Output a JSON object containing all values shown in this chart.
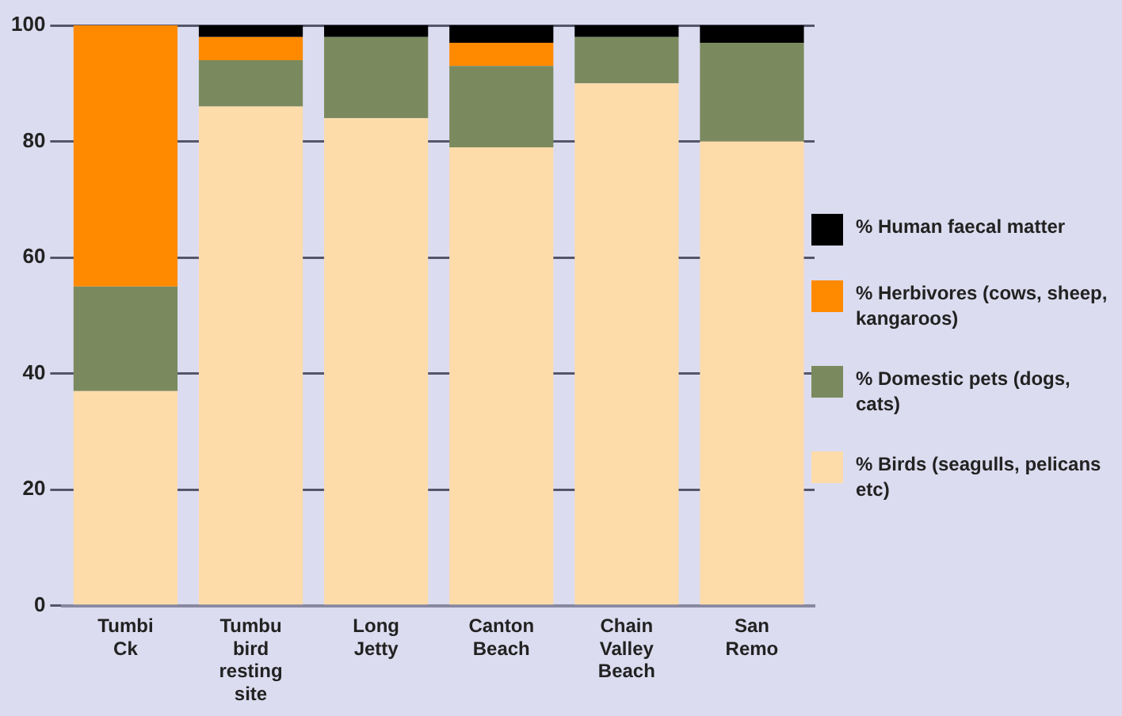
{
  "chart_data": {
    "type": "bar",
    "stacked": true,
    "categories": [
      "Tumbi Ck",
      "Tumbu bird resting site",
      "Long Jetty",
      "Canton Beach",
      "Chain Valley Beach",
      "San Remo"
    ],
    "series": [
      {
        "name": "% Birds (seagulls, pelicans etc)",
        "color": "#fddcaa",
        "values": [
          37,
          86,
          84,
          79,
          90,
          80
        ]
      },
      {
        "name": "% Domestic pets (dogs, cats)",
        "color": "#7a8a5e",
        "values": [
          18,
          8,
          14,
          14,
          8,
          17
        ]
      },
      {
        "name": "% Herbivores (cows, sheep, kangaroos)",
        "color": "#ff8a00",
        "values": [
          45,
          4,
          0,
          4,
          0,
          0
        ]
      },
      {
        "name": "% Human faecal matter",
        "color": "#000000",
        "values": [
          0,
          2,
          2,
          3,
          2,
          3
        ]
      }
    ],
    "ylim": [
      0,
      100
    ],
    "yticks": [
      0,
      20,
      40,
      60,
      80,
      100
    ],
    "grid": "y",
    "legend": "right"
  }
}
